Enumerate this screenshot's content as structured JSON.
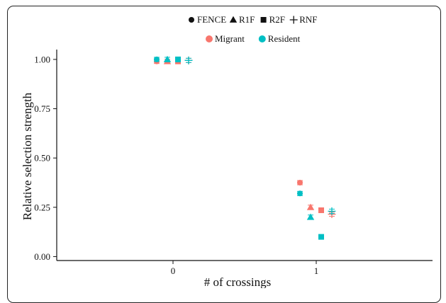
{
  "chart_data": {
    "type": "scatter",
    "xlabel": "# of crossings",
    "ylabel": "Relative selection strength",
    "x_categories": [
      "0",
      "1"
    ],
    "y_ticks": [
      "0.00",
      "0.25",
      "0.50",
      "0.75",
      "1.00"
    ],
    "ylim": [
      -0.02,
      1.05
    ],
    "grid": false,
    "legend_shape": {
      "position": "top",
      "items": [
        {
          "label": "FENCE",
          "shape": "circle"
        },
        {
          "label": "R1F",
          "shape": "triangle"
        },
        {
          "label": "R2F",
          "shape": "square"
        },
        {
          "label": "RNF",
          "shape": "plus"
        }
      ]
    },
    "legend_color": {
      "position": "top",
      "items": [
        {
          "label": "Migrant",
          "color": "#F8766D"
        },
        {
          "label": "Resident",
          "color": "#00BFC4"
        }
      ]
    },
    "series": [
      {
        "group": "Migrant",
        "shape": "FENCE",
        "x": [
          "0",
          "1"
        ],
        "y": [
          0.99,
          0.375
        ]
      },
      {
        "group": "Migrant",
        "shape": "R1F",
        "x": [
          "0",
          "1"
        ],
        "y": [
          0.99,
          0.25
        ]
      },
      {
        "group": "Migrant",
        "shape": "R2F",
        "x": [
          "0",
          "1"
        ],
        "y": [
          0.99,
          0.235
        ]
      },
      {
        "group": "Migrant",
        "shape": "RNF",
        "x": [
          "0",
          "1"
        ],
        "y": [
          0.995,
          0.215
        ]
      },
      {
        "group": "Resident",
        "shape": "FENCE",
        "x": [
          "0",
          "1"
        ],
        "y": [
          1.0,
          0.32
        ]
      },
      {
        "group": "Resident",
        "shape": "R1F",
        "x": [
          "0",
          "1"
        ],
        "y": [
          1.0,
          0.2
        ]
      },
      {
        "group": "Resident",
        "shape": "R2F",
        "x": [
          "0",
          "1"
        ],
        "y": [
          1.0,
          0.1
        ]
      },
      {
        "group": "Resident",
        "shape": "RNF",
        "x": [
          "0",
          "1"
        ],
        "y": [
          0.995,
          0.23
        ]
      }
    ]
  }
}
